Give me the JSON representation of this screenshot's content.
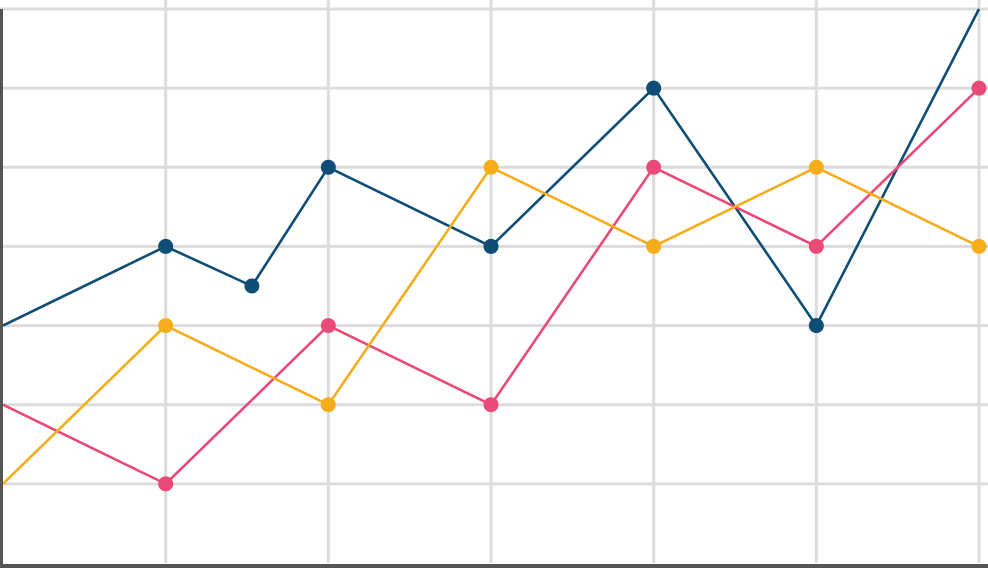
{
  "chart_data": {
    "type": "line",
    "title": "",
    "xlabel": "",
    "ylabel": "",
    "x": [
      0,
      1,
      2,
      3,
      4,
      5,
      6
    ],
    "xlim": [
      0,
      6
    ],
    "ylim": [
      0,
      7
    ],
    "grid": true,
    "legend": "none",
    "series": [
      {
        "color": "#0e4d75",
        "points": [
          [
            0,
            3
          ],
          [
            1,
            4
          ],
          [
            1.53,
            3.5
          ],
          [
            2,
            5
          ],
          [
            3,
            4
          ],
          [
            4,
            6
          ],
          [
            5,
            3
          ],
          [
            6,
            7
          ]
        ],
        "markers": [
          1,
          2,
          3,
          4,
          5,
          6
        ]
      },
      {
        "color": "#e94a78",
        "points": [
          [
            0,
            2
          ],
          [
            1,
            1
          ],
          [
            2,
            3
          ],
          [
            3,
            2
          ],
          [
            4,
            5
          ],
          [
            5,
            4
          ],
          [
            6,
            6
          ]
        ],
        "markers": [
          1,
          2,
          3,
          4,
          5,
          6
        ]
      },
      {
        "color": "#f5ad1c",
        "points": [
          [
            0,
            1
          ],
          [
            1,
            3
          ],
          [
            2,
            2
          ],
          [
            3,
            5
          ],
          [
            4,
            4
          ],
          [
            5,
            5
          ],
          [
            6,
            4
          ]
        ],
        "markers": [
          1,
          2,
          3,
          4,
          5,
          6
        ]
      }
    ],
    "colors": {
      "grid": "#dcdcdc",
      "axis": "#555555",
      "background": "#ffffff"
    }
  }
}
